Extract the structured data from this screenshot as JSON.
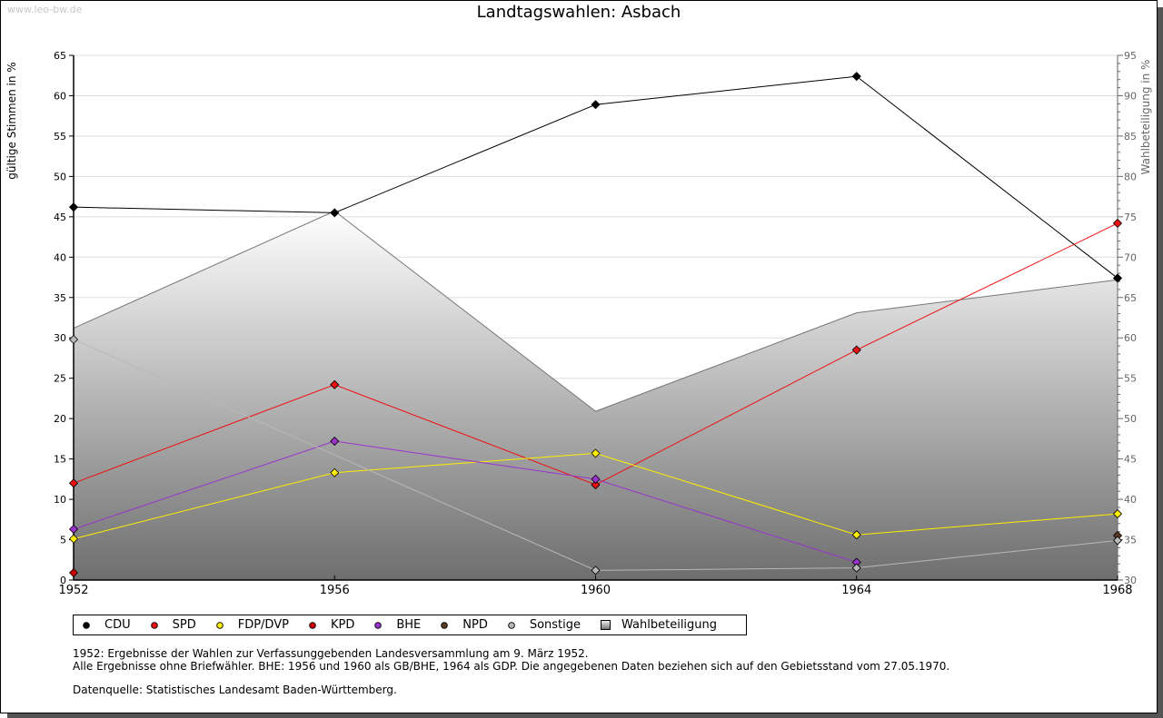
{
  "watermark": "www.leo-bw.de",
  "chart_data": {
    "type": "line",
    "title": "Landtagswahlen: Asbach",
    "ylabel": "gültige Stimmen in %",
    "y2label": "Wahlbeteiligung in %",
    "xlabel": "",
    "x": [
      "1952",
      "1956",
      "1960",
      "1964",
      "1968"
    ],
    "ylim": [
      0,
      65
    ],
    "y2lim": [
      30,
      95
    ],
    "yticks": [
      "0",
      "5",
      "10",
      "15",
      "20",
      "25",
      "30",
      "35",
      "40",
      "45",
      "50",
      "55",
      "60",
      "65"
    ],
    "y2ticks": [
      "30",
      "35",
      "40",
      "45",
      "50",
      "55",
      "60",
      "65",
      "70",
      "75",
      "80",
      "85",
      "90",
      "95"
    ],
    "grid": true,
    "legend_position": "bottom",
    "series": [
      {
        "name": "CDU",
        "color": "#000000",
        "values": [
          46.2,
          45.5,
          58.9,
          62.4,
          37.4
        ]
      },
      {
        "name": "SPD",
        "color": "#ee1111",
        "values": [
          12.0,
          24.2,
          11.8,
          28.5,
          44.2
        ]
      },
      {
        "name": "FDP/DVP",
        "color": "#ffee00",
        "values": [
          5.1,
          13.3,
          15.7,
          5.6,
          8.2
        ]
      },
      {
        "name": "KPD",
        "color": "#cc0000",
        "values": [
          0.9,
          null,
          null,
          null,
          null
        ]
      },
      {
        "name": "BHE",
        "color": "#9933cc",
        "values": [
          6.3,
          17.2,
          12.5,
          2.2,
          null
        ]
      },
      {
        "name": "NPD",
        "color": "#5a3a22",
        "values": [
          null,
          null,
          null,
          null,
          5.5
        ]
      },
      {
        "name": "Sonstige",
        "color": "#b8b8b8",
        "values": [
          29.8,
          null,
          1.2,
          1.5,
          4.9
        ]
      }
    ],
    "turnout": {
      "name": "Wahlbeteiligung",
      "axis": "right",
      "values": [
        61.2,
        75.7,
        50.9,
        63.1,
        67.2
      ]
    }
  },
  "notes": {
    "line1": "1952: Ergebnisse der Wahlen zur Verfassunggebenden Landesversammlung am 9. März 1952.",
    "line2": "Alle Ergebnisse ohne Briefwähler. BHE: 1956 und 1960 als GB/BHE, 1964 als GDP. Die angegebenen Daten beziehen sich auf den Gebietsstand vom 27.05.1970.",
    "source": "Datenquelle: Statistisches Landesamt Baden-Württemberg."
  }
}
